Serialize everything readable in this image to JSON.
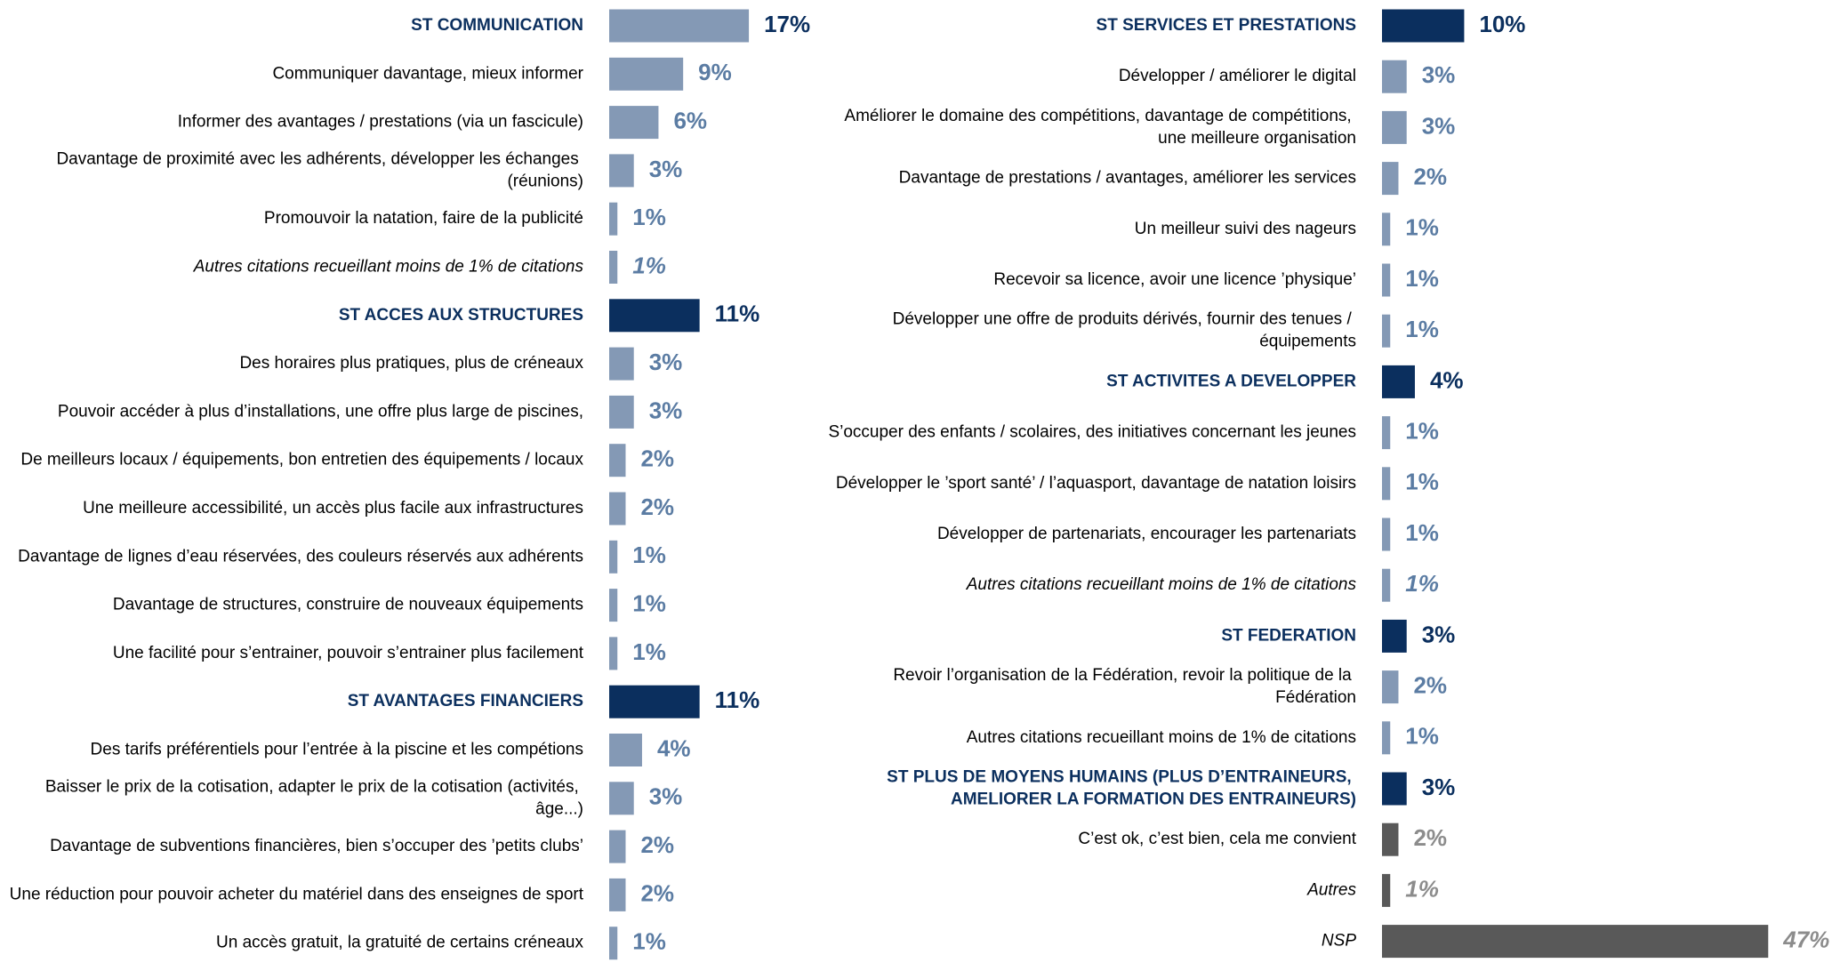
{
  "chart_data": [
    {
      "type": "hbar",
      "categories": [
        "ST COMMUNICATION",
        "Communiquer davantage, mieux informer",
        "Informer des avantages / prestations (via un fascicule)",
        "Davantage de proximité avec les adhérents, développer les échanges (réunions)",
        "Promouvoir la natation, faire de la publicité",
        "Autres citations recueillant moins de 1% de citations",
        "ST ACCES AUX STRUCTURES",
        "Des horaires plus pratiques, plus de créneaux",
        "Pouvoir accéder à plus d’installations, une offre plus large de piscines,",
        "De meilleurs locaux / équipements, bon entretien des équipements / locaux",
        "Une meilleure accessibilité, un accès plus facile aux infrastructures",
        "Davantage de lignes d’eau réservées, des couleurs réservés aux adhérents",
        "Davantage de structures, construire de nouveaux équipements",
        "Une facilité pour s’entrainer, pouvoir s’entrainer plus facilement",
        "ST AVANTAGES FINANCIERS",
        "Des tarifs préférentiels pour l’entrée à la piscine et les compétions",
        "Baisser le prix de la cotisation, adapter le prix de la cotisation (activités, âge...)",
        "Davantage de subventions financières, bien s’occuper des ’petits clubs’",
        "Une réduction pour pouvoir acheter du matériel dans des enseignes de sport",
        "Un accès gratuit, la gratuité de certains créneaux"
      ],
      "values": [
        17,
        9,
        6,
        3,
        1,
        1,
        11,
        3,
        3,
        2,
        2,
        1,
        1,
        1,
        11,
        4,
        3,
        2,
        2,
        1
      ],
      "value_labels": [
        "17%",
        "9%",
        "6%",
        "3%",
        "1%",
        "1%",
        "11%",
        "3%",
        "3%",
        "2%",
        "2%",
        "1%",
        "1%",
        "1%",
        "11%",
        "4%",
        "3%",
        "2%",
        "2%",
        "1%"
      ],
      "styles": [
        "bold",
        "normal",
        "normal",
        "normal",
        "normal",
        "italic",
        "bold",
        "normal",
        "normal",
        "normal",
        "normal",
        "normal",
        "normal",
        "normal",
        "bold",
        "normal",
        "normal",
        "normal",
        "normal",
        "normal"
      ],
      "colors": [
        "#8499b5",
        "#8499b5",
        "#8499b5",
        "#8499b5",
        "#8499b5",
        "#8499b5",
        "#0b2f5e",
        "#8499b5",
        "#8499b5",
        "#8499b5",
        "#8499b5",
        "#8499b5",
        "#8499b5",
        "#8499b5",
        "#0b2f5e",
        "#8499b5",
        "#8499b5",
        "#8499b5",
        "#8499b5",
        "#8499b5"
      ],
      "value_label_colors": [
        "#0b2f5e",
        "#5b7ca3",
        "#5b7ca3",
        "#5b7ca3",
        "#5b7ca3",
        "#5b7ca3",
        "#0b2f5e",
        "#5b7ca3",
        "#5b7ca3",
        "#5b7ca3",
        "#5b7ca3",
        "#5b7ca3",
        "#5b7ca3",
        "#5b7ca3",
        "#0b2f5e",
        "#5b7ca3",
        "#5b7ca3",
        "#5b7ca3",
        "#5b7ca3",
        "#5b7ca3"
      ]
    },
    {
      "type": "hbar",
      "categories": [
        "ST SERVICES ET PRESTATIONS",
        "Développer / améliorer le digital",
        "Améliorer le domaine des compétitions, davantage de compétitions, une meilleure organisation",
        "Davantage de prestations / avantages, améliorer les services",
        "Un meilleur suivi des nageurs",
        "Recevoir sa licence, avoir une licence ’physique’",
        "Développer une offre de produits dérivés, fournir des tenues / équipements",
        "ST ACTIVITES A DEVELOPPER",
        "S’occuper des enfants / scolaires, des initiatives concernant les jeunes",
        "Développer le ’sport santé’ / l’aquasport, davantage de natation loisirs",
        "Développer de partenariats, encourager les partenariats",
        "Autres citations recueillant moins de 1% de citations",
        "ST FEDERATION",
        "Revoir l’organisation de la Fédération, revoir la politique de la Fédération",
        "Autres citations recueillant moins de 1% de citations",
        "ST PLUS DE MOYENS HUMAINS (PLUS D’ENTRAINEURS, AMELIORER LA FORMATION DES ENTRAINEURS)",
        "C’est ok, c’est bien, cela me convient",
        "Autres",
        "NSP"
      ],
      "values": [
        10,
        3,
        3,
        2,
        1,
        1,
        1,
        4,
        1,
        1,
        1,
        1,
        3,
        2,
        1,
        3,
        2,
        1,
        47
      ],
      "value_labels": [
        "10%",
        "3%",
        "3%",
        "2%",
        "1%",
        "1%",
        "1%",
        "4%",
        "1%",
        "1%",
        "1%",
        "1%",
        "3%",
        "2%",
        "1%",
        "3%",
        "2%",
        "1%",
        "47%"
      ],
      "styles": [
        "bold",
        "normal",
        "normal",
        "normal",
        "normal",
        "normal",
        "normal",
        "bold",
        "normal",
        "normal",
        "normal",
        "italic",
        "bold",
        "normal",
        "normal",
        "bold",
        "normal",
        "italic",
        "italic"
      ],
      "colors": [
        "#0b2f5e",
        "#8499b5",
        "#8499b5",
        "#8499b5",
        "#8499b5",
        "#8499b5",
        "#8499b5",
        "#0b2f5e",
        "#8499b5",
        "#8499b5",
        "#8499b5",
        "#8499b5",
        "#0b2f5e",
        "#8499b5",
        "#8499b5",
        "#0b2f5e",
        "#595959",
        "#595959",
        "#595959"
      ],
      "value_label_colors": [
        "#0b2f5e",
        "#5b7ca3",
        "#5b7ca3",
        "#5b7ca3",
        "#5b7ca3",
        "#5b7ca3",
        "#5b7ca3",
        "#0b2f5e",
        "#5b7ca3",
        "#5b7ca3",
        "#5b7ca3",
        "#5b7ca3",
        "#0b2f5e",
        "#5b7ca3",
        "#5b7ca3",
        "#0b2f5e",
        "#8c8c8c",
        "#8c8c8c",
        "#8c8c8c"
      ]
    }
  ]
}
